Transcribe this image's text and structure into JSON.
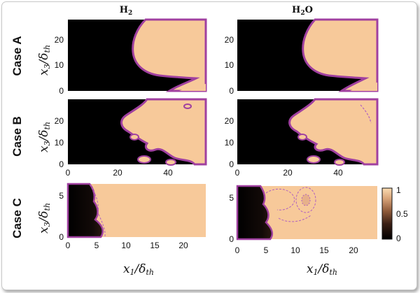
{
  "figure": {
    "column_titles": [
      {
        "base": "H",
        "sub": "2",
        "tail": ""
      },
      {
        "base": "H",
        "sub": "2",
        "tail": "O"
      }
    ],
    "row_labels": [
      "Case A",
      "Case B",
      "Case C"
    ],
    "y_axis_label": {
      "base": "x",
      "sub1": "3",
      "mid": "/δ",
      "sub2": "th"
    },
    "x_axis_label": {
      "base": "x",
      "sub1": "1",
      "mid": "/δ",
      "sub2": "th"
    },
    "colors": {
      "background_region": "#000000",
      "burned_region": "#f7c99a",
      "flame_edge": "#a040a0",
      "contour_dash": "#b060c0"
    }
  },
  "chart_data": [
    {
      "type": "heatmap",
      "panel": "Case A H2",
      "yticks": [
        0,
        10,
        20
      ],
      "ylim": [
        0,
        28
      ],
      "xlim": [
        0,
        55
      ],
      "xticks": []
    },
    {
      "type": "heatmap",
      "panel": "Case A H2O",
      "yticks": [
        0,
        10,
        20
      ],
      "ylim": [
        0,
        28
      ],
      "xlim": [
        0,
        55
      ],
      "xticks": []
    },
    {
      "type": "heatmap",
      "panel": "Case B H2",
      "yticks": [
        0,
        10,
        20
      ],
      "xticks": [
        0,
        20,
        40
      ],
      "ylim": [
        0,
        28
      ],
      "xlim": [
        0,
        55
      ]
    },
    {
      "type": "heatmap",
      "panel": "Case B H2O",
      "yticks": [
        0,
        10,
        20
      ],
      "xticks": [
        0,
        20,
        40
      ],
      "ylim": [
        0,
        28
      ],
      "xlim": [
        0,
        55
      ]
    },
    {
      "type": "heatmap",
      "panel": "Case C H2",
      "yticks": [
        0,
        5
      ],
      "xticks": [
        0,
        5,
        10,
        15,
        20
      ],
      "ylim": [
        0,
        6
      ],
      "xlim": [
        0,
        24
      ]
    },
    {
      "type": "heatmap",
      "panel": "Case C H2O",
      "yticks": [
        0,
        5
      ],
      "xticks": [
        0,
        5,
        10,
        15,
        20
      ],
      "ylim": [
        0,
        6
      ],
      "xlim": [
        0,
        24
      ]
    }
  ],
  "colorbar": {
    "ticks": [
      "1",
      "0.5",
      "0"
    ],
    "min": 0,
    "max": 1
  }
}
